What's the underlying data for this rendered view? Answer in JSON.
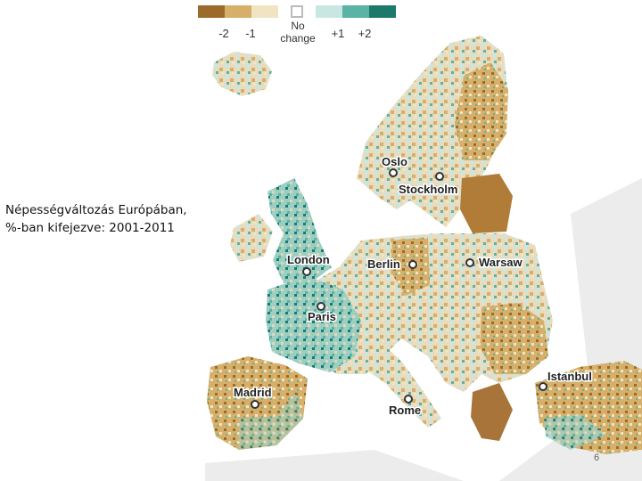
{
  "title": {
    "line1": "Népességváltozás Európában,",
    "line2": "%-ban kifejezve: 2001-2011"
  },
  "legend": {
    "items": [
      {
        "label": "-2",
        "color": "#9c6b2b"
      },
      {
        "label": "-1",
        "color": "#d6b06a"
      },
      {
        "label": "",
        "color": "#f1e4c2"
      },
      {
        "label": "No change",
        "color": "#ffffff"
      },
      {
        "label": "",
        "color": "#c9e7e2"
      },
      {
        "label": "+1",
        "color": "#5ab3a4"
      },
      {
        "label": "+2",
        "color": "#1d7a6a"
      }
    ],
    "label_minus2": "-2",
    "label_minus1": "-1",
    "label_nochange_1": "No",
    "label_nochange_2": "change",
    "label_plus1": "+1",
    "label_plus2": "+2"
  },
  "cities": [
    {
      "name": "Oslo"
    },
    {
      "name": "Stockholm"
    },
    {
      "name": "London"
    },
    {
      "name": "Berlin"
    },
    {
      "name": "Warsaw"
    },
    {
      "name": "Paris"
    },
    {
      "name": "Madrid"
    },
    {
      "name": "Rome"
    },
    {
      "name": "Istanbul"
    }
  ],
  "page_number": "6"
}
